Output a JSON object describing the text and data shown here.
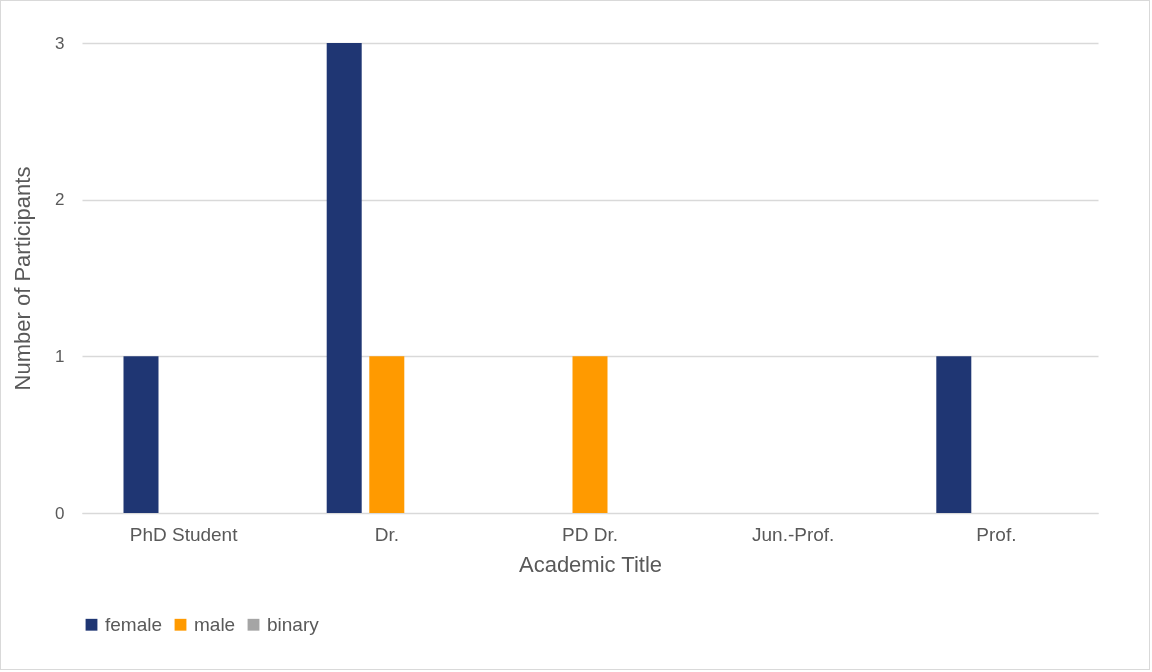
{
  "chart_data": {
    "type": "bar",
    "xlabel": "Academic Title",
    "ylabel": "Number of Participants",
    "categories": [
      "PhD Student",
      "Dr.",
      "PD Dr.",
      "Jun.-Prof.",
      "Prof."
    ],
    "series": [
      {
        "name": "female",
        "color": "#1f3673",
        "values": [
          1,
          3,
          0,
          0,
          1
        ]
      },
      {
        "name": "male",
        "color": "#ff9a00",
        "values": [
          0,
          1,
          1,
          0,
          0
        ]
      },
      {
        "name": "binary",
        "color": "#a5a5a5",
        "values": [
          0,
          0,
          0,
          0,
          0
        ]
      }
    ],
    "ylim": [
      0,
      3
    ],
    "yticks": [
      0,
      1,
      2,
      3
    ],
    "grid": "y",
    "legend": "bottom"
  }
}
